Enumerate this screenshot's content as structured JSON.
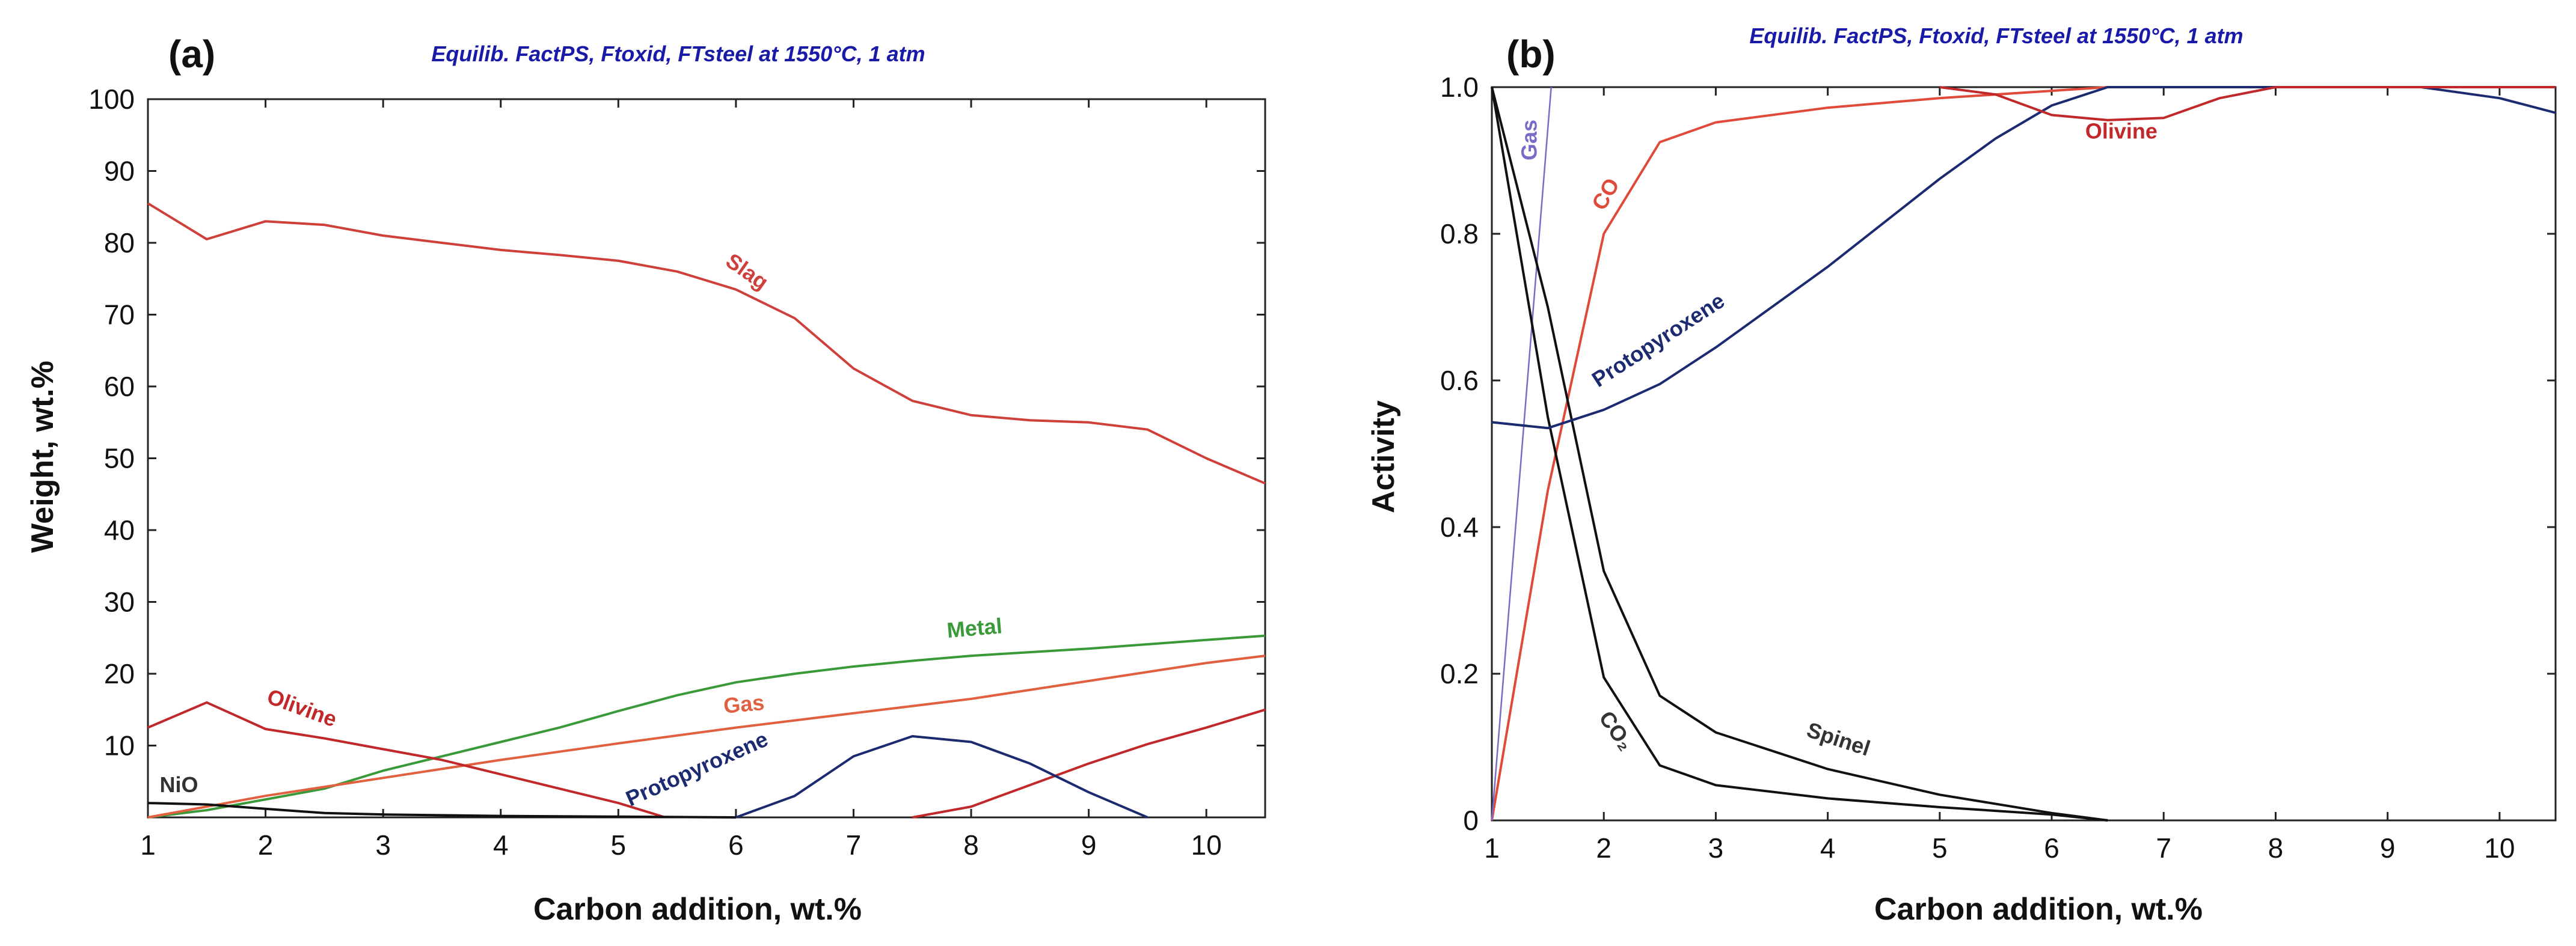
{
  "colors": {
    "slag": "#d0403a",
    "olivine": "#c0282a",
    "gas": "#e06040",
    "metal": "#3a9a3a",
    "protopyroxene": "#1c2a70",
    "nio": "#111111",
    "co": "#e04a3a",
    "gas_b": "#7a6ac8",
    "co2": "#111111",
    "spinel": "#111111",
    "title": "#1a1aa8"
  },
  "chart_data": [
    {
      "type": "line",
      "panel_label": "(a)",
      "title": "Equilib. FactPS, Ftoxid, FTsteel at 1550°C, 1 atm",
      "xlabel": "Carbon addition, wt.%",
      "ylabel": "Weight, wt.%",
      "xlim": [
        1,
        10.5
      ],
      "ylim": [
        0,
        100
      ],
      "xticks": [
        1,
        2,
        3,
        4,
        5,
        6,
        7,
        8,
        9,
        10
      ],
      "yticks": [
        10,
        20,
        30,
        40,
        50,
        60,
        70,
        80,
        90,
        100
      ],
      "series": [
        {
          "name": "Slag",
          "color": "slag",
          "x": [
            1,
            1.5,
            2,
            2.5,
            3,
            3.5,
            4,
            4.5,
            5,
            5.5,
            6,
            6.5,
            7,
            7.5,
            8,
            8.5,
            9,
            9.5,
            10,
            10.5
          ],
          "y": [
            85.5,
            80.5,
            83,
            82.5,
            81,
            80,
            79,
            78.3,
            77.5,
            76,
            73.5,
            69.5,
            62.5,
            58,
            56,
            55.3,
            55,
            54,
            50,
            46.5
          ],
          "label_at": [
            5.9,
            77
          ],
          "label_rot": 35
        },
        {
          "name": "Metal",
          "color": "metal",
          "x": [
            1,
            1.5,
            2,
            2.5,
            3,
            3.5,
            4,
            4.5,
            5,
            5.5,
            6,
            6.5,
            7,
            7.5,
            8,
            9,
            10,
            10.5
          ],
          "y": [
            0,
            1,
            2.5,
            4,
            6.5,
            8.5,
            10.5,
            12.5,
            14.8,
            17,
            18.8,
            20,
            21,
            21.8,
            22.5,
            23.5,
            24.7,
            25.3
          ],
          "label_at": [
            7.8,
            25
          ],
          "label_rot": -5
        },
        {
          "name": "Gas",
          "color": "gas",
          "x": [
            1,
            2,
            3,
            4,
            5,
            6,
            7,
            8,
            9,
            10,
            10.5
          ],
          "y": [
            0,
            3,
            5.5,
            8,
            10.3,
            12.5,
            14.5,
            16.5,
            19,
            21.5,
            22.5
          ],
          "label_at": [
            5.9,
            14.5
          ],
          "label_rot": -5
        },
        {
          "name": "Olivine",
          "color": "olivine",
          "x": [
            1,
            1.5,
            2,
            2.5,
            3,
            3.5,
            4,
            4.5,
            5,
            5.4
          ],
          "y": [
            12.5,
            16,
            12.3,
            11,
            9.5,
            8,
            6,
            4,
            2,
            0
          ],
          "label_at": [
            2.0,
            16
          ],
          "label_rot": 20
        },
        {
          "name": "Olivine (2)",
          "color": "olivine",
          "x": [
            7.5,
            8,
            8.5,
            9,
            9.5,
            10,
            10.5
          ],
          "y": [
            0,
            1.5,
            4.5,
            7.5,
            10.2,
            12.5,
            15
          ]
        },
        {
          "name": "Protopyroxene",
          "color": "protopyroxene",
          "x": [
            6,
            6.5,
            7,
            7.5,
            8,
            8.5,
            9,
            9.5
          ],
          "y": [
            0,
            3,
            8.5,
            11.3,
            10.5,
            7.5,
            3.5,
            0
          ],
          "label_at": [
            5.1,
            1.5
          ],
          "label_rot": -24
        },
        {
          "name": "NiO",
          "color": "nio",
          "x": [
            1,
            1.5,
            2,
            2.5,
            3,
            4,
            5,
            6
          ],
          "y": [
            2,
            1.8,
            1.2,
            0.6,
            0.4,
            0.2,
            0.1,
            0
          ],
          "label_at": [
            1.1,
            3.5
          ],
          "label_rot": 0
        }
      ]
    },
    {
      "type": "line",
      "panel_label": "(b)",
      "title": "Equilib. FactPS, Ftoxid, FTsteel at 1550°C, 1 atm",
      "xlabel": "Carbon addition, wt.%",
      "ylabel": "Activity",
      "xlim": [
        1,
        10.5
      ],
      "ylim": [
        0,
        1
      ],
      "xticks": [
        1,
        2,
        3,
        4,
        5,
        6,
        7,
        8,
        9,
        10
      ],
      "yticks": [
        0,
        0.2,
        0.4,
        0.6,
        0.8,
        1.0
      ],
      "ytick_labels": [
        "0",
        "0.2",
        "0.4",
        "0.6",
        "0.8",
        "1.0"
      ],
      "series": [
        {
          "name": "CO",
          "color": "co",
          "x": [
            1,
            1.5,
            2,
            2.5,
            3,
            4,
            5,
            6,
            6.5,
            10.5
          ],
          "y": [
            0,
            0.45,
            0.8,
            0.925,
            0.952,
            0.972,
            0.985,
            0.995,
            1,
            1
          ],
          "label_at": [
            2.0,
            0.83
          ],
          "label_rot": -60
        },
        {
          "name": "Gas",
          "color": "gas_b",
          "x": [
            1,
            1.53
          ],
          "y": [
            0,
            1
          ],
          "label_at": [
            1.4,
            0.9
          ],
          "label_rot": -90
        },
        {
          "name": "CO₂",
          "color": "co2",
          "x": [
            1,
            1.5,
            2,
            2.5,
            3,
            4,
            5,
            6,
            6.5
          ],
          "y": [
            1,
            0.55,
            0.195,
            0.075,
            0.048,
            0.03,
            0.018,
            0.008,
            0
          ],
          "label_at": [
            1.95,
            0.14
          ],
          "label_rot": 55
        },
        {
          "name": "Spinel",
          "color": "spinel",
          "x": [
            1,
            1.5,
            2,
            2.5,
            3,
            4,
            5,
            6,
            6.5
          ],
          "y": [
            1,
            0.7,
            0.34,
            0.17,
            0.12,
            0.07,
            0.035,
            0.01,
            0
          ],
          "label_at": [
            3.8,
            0.115
          ],
          "label_rot": 18
        },
        {
          "name": "Protopyroxene",
          "color": "protopyroxene",
          "x": [
            1,
            1.5,
            2,
            2.5,
            3,
            3.5,
            4,
            4.5,
            5,
            5.5,
            6,
            6.5,
            9.3,
            10,
            10.5
          ],
          "y": [
            0.543,
            0.535,
            0.56,
            0.595,
            0.645,
            0.7,
            0.755,
            0.815,
            0.875,
            0.93,
            0.975,
            1,
            1,
            0.985,
            0.965
          ],
          "label_at": [
            1.95,
            0.59
          ],
          "label_rot": -33
        },
        {
          "name": "Olivine",
          "color": "olivine",
          "x": [
            5,
            5.5,
            6,
            6.5,
            7,
            7.5,
            8,
            10.5
          ],
          "y": [
            1,
            0.99,
            0.962,
            0.955,
            0.958,
            0.985,
            1,
            1
          ],
          "label_at": [
            6.3,
            0.93
          ],
          "label_rot": 0
        }
      ]
    }
  ]
}
